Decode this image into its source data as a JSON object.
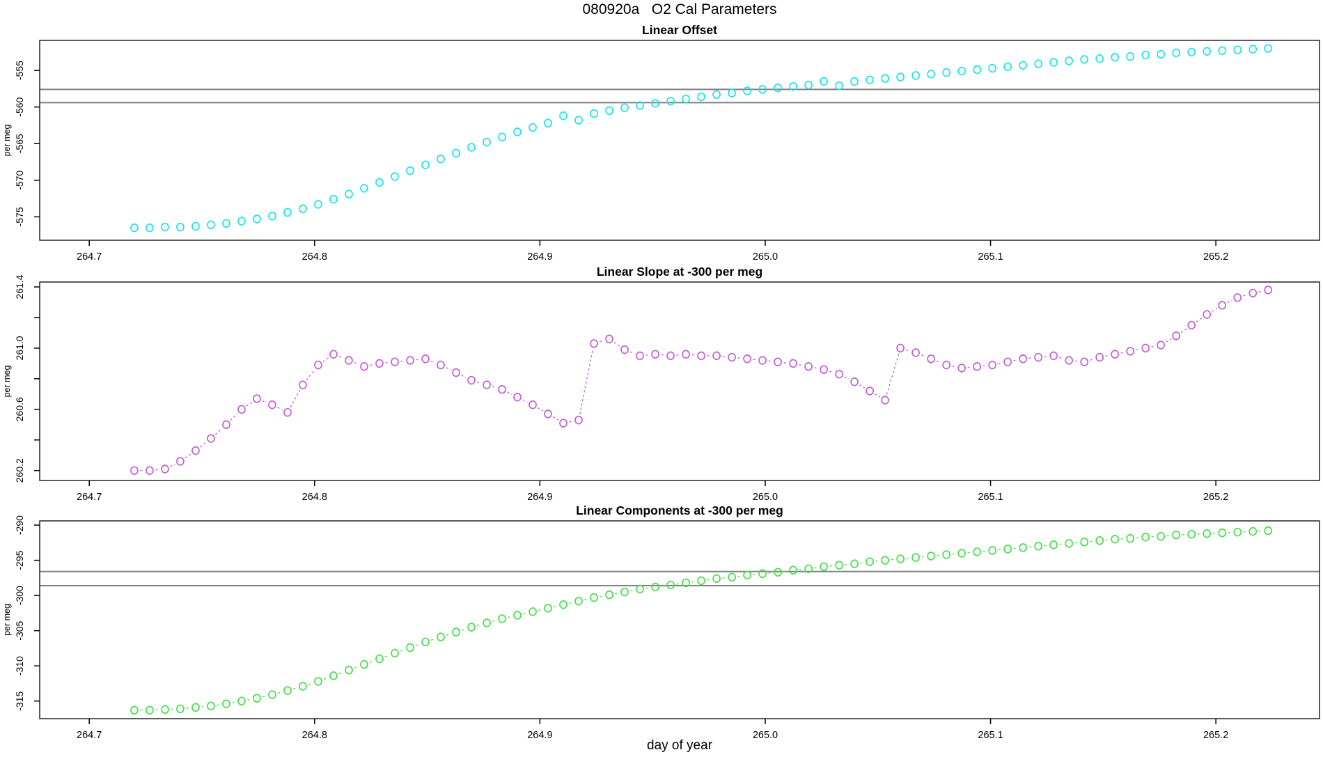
{
  "window": {
    "title": "080920a   O2 Cal Parameters"
  },
  "axes": {
    "xlabel": "day of year",
    "ylabel": "per meg"
  },
  "colors": {
    "offset_series": "#14e8e8",
    "slope_series": "#c45fd6",
    "components_series": "#42e245",
    "reference_line": "#808080",
    "axis": "#000000"
  },
  "chart_data": [
    {
      "type": "scatter",
      "title": "Linear Offset",
      "ylabel": "per meg",
      "series_color": "#14e8e8",
      "connect": false,
      "xlim": [
        264.678,
        265.246
      ],
      "ylim": [
        -578.2,
        -550.9
      ],
      "yticks": [
        -575,
        -570,
        -565,
        -560,
        -555
      ],
      "ytick_labels": [
        "-575",
        "-570",
        "-565",
        "-560",
        "-555"
      ],
      "ref_lines": [
        -557.6,
        -559.4
      ],
      "x": [
        264.72,
        264.7268,
        264.7336,
        264.7404,
        264.7472,
        264.754,
        264.7608,
        264.7676,
        264.7744,
        264.7812,
        264.788,
        264.7948,
        264.8016,
        264.8084,
        264.8152,
        264.822,
        264.8288,
        264.8356,
        264.8424,
        264.8492,
        264.856,
        264.8628,
        264.8696,
        264.8764,
        264.8832,
        264.89,
        264.8968,
        264.9036,
        264.9104,
        264.9172,
        264.924,
        264.9308,
        264.9376,
        264.9444,
        264.9512,
        264.958,
        264.9648,
        264.9716,
        264.9784,
        264.9852,
        264.992,
        264.9988,
        265.0056,
        265.0124,
        265.0192,
        265.026,
        265.0328,
        265.0396,
        265.0464,
        265.0532,
        265.06,
        265.0668,
        265.0736,
        265.0804,
        265.0872,
        265.094,
        265.1008,
        265.1076,
        265.1144,
        265.1212,
        265.128,
        265.1348,
        265.1416,
        265.1484,
        265.1552,
        265.162,
        265.1688,
        265.1756,
        265.1824,
        265.1892,
        265.196,
        265.2028,
        265.2096,
        265.2164,
        265.2232
      ],
      "values": [
        -576.5,
        -576.5,
        -576.4,
        -576.4,
        -576.3,
        -576.1,
        -575.9,
        -575.6,
        -575.3,
        -574.9,
        -574.4,
        -573.9,
        -573.3,
        -572.6,
        -571.9,
        -571.1,
        -570.3,
        -569.5,
        -568.7,
        -567.9,
        -567.1,
        -566.3,
        -565.5,
        -564.8,
        -564.1,
        -563.4,
        -562.8,
        -562.2,
        -561.2,
        -561.8,
        -560.9,
        -560.5,
        -560.1,
        -559.8,
        -559.5,
        -559.2,
        -558.9,
        -558.6,
        -558.3,
        -558.1,
        -557.8,
        -557.6,
        -557.4,
        -557.2,
        -557.0,
        -556.5,
        -557.1,
        -556.5,
        -556.3,
        -556.1,
        -555.9,
        -555.7,
        -555.5,
        -555.3,
        -555.1,
        -554.9,
        -554.7,
        -554.5,
        -554.3,
        -554.1,
        -553.9,
        -553.7,
        -553.5,
        -553.4,
        -553.2,
        -553.1,
        -552.9,
        -552.8,
        -552.6,
        -552.5,
        -552.4,
        -552.3,
        -552.2,
        -552.1,
        -552.0
      ]
    },
    {
      "type": "scatter",
      "title": "Linear Slope at -300 per meg",
      "ylabel": "per meg",
      "series_color": "#c45fd6",
      "connect": true,
      "xlim": [
        264.678,
        265.246
      ],
      "ylim": [
        260.135,
        261.432
      ],
      "yticks": [
        260.2,
        260.4,
        260.6,
        260.8,
        261.0,
        261.2,
        261.4
      ],
      "ytick_labels": [
        "260.2",
        "",
        "260.6",
        "",
        "261.0",
        "",
        "261.4"
      ],
      "ref_lines": [],
      "x": [
        264.72,
        264.7268,
        264.7336,
        264.7404,
        264.7472,
        264.754,
        264.7608,
        264.7676,
        264.7744,
        264.7812,
        264.788,
        264.7948,
        264.8016,
        264.8084,
        264.8152,
        264.822,
        264.8288,
        264.8356,
        264.8424,
        264.8492,
        264.856,
        264.8628,
        264.8696,
        264.8764,
        264.8832,
        264.89,
        264.8968,
        264.9036,
        264.9104,
        264.9172,
        264.924,
        264.9308,
        264.9376,
        264.9444,
        264.9512,
        264.958,
        264.9648,
        264.9716,
        264.9784,
        264.9852,
        264.992,
        264.9988,
        265.0056,
        265.0124,
        265.0192,
        265.026,
        265.0328,
        265.0396,
        265.0464,
        265.0532,
        265.06,
        265.0668,
        265.0736,
        265.0804,
        265.0872,
        265.094,
        265.1008,
        265.1076,
        265.1144,
        265.1212,
        265.128,
        265.1348,
        265.1416,
        265.1484,
        265.1552,
        265.162,
        265.1688,
        265.1756,
        265.1824,
        265.1892,
        265.196,
        265.2028,
        265.2096,
        265.2164,
        265.2232
      ],
      "values": [
        260.2,
        260.2,
        260.21,
        260.26,
        260.33,
        260.41,
        260.5,
        260.6,
        260.67,
        260.63,
        260.58,
        260.76,
        260.89,
        260.96,
        260.92,
        260.88,
        260.9,
        260.91,
        260.92,
        260.93,
        260.89,
        260.84,
        260.79,
        260.76,
        260.73,
        260.68,
        260.63,
        260.57,
        260.51,
        260.53,
        261.03,
        261.06,
        260.99,
        260.95,
        260.96,
        260.95,
        260.96,
        260.95,
        260.95,
        260.94,
        260.93,
        260.92,
        260.91,
        260.9,
        260.88,
        260.86,
        260.83,
        260.78,
        260.72,
        260.66,
        261.0,
        260.97,
        260.93,
        260.89,
        260.87,
        260.88,
        260.89,
        260.91,
        260.93,
        260.94,
        260.95,
        260.92,
        260.91,
        260.94,
        260.96,
        260.98,
        261.0,
        261.02,
        261.08,
        261.15,
        261.22,
        261.28,
        261.33,
        261.36,
        261.38
      ]
    },
    {
      "type": "scatter",
      "title": "Linear Components at -300 per meg",
      "ylabel": "per meg",
      "series_color": "#42e245",
      "connect": true,
      "xlim": [
        264.678,
        265.246
      ],
      "ylim": [
        -317.5,
        -289.4
      ],
      "yticks": [
        -315,
        -310,
        -305,
        -300,
        -295,
        -290
      ],
      "ytick_labels": [
        "-315",
        "-310",
        "-305",
        "-300",
        "-295",
        "-290"
      ],
      "ref_lines": [
        -296.6,
        -298.6
      ],
      "x": [
        264.72,
        264.7268,
        264.7336,
        264.7404,
        264.7472,
        264.754,
        264.7608,
        264.7676,
        264.7744,
        264.7812,
        264.788,
        264.7948,
        264.8016,
        264.8084,
        264.8152,
        264.822,
        264.8288,
        264.8356,
        264.8424,
        264.8492,
        264.856,
        264.8628,
        264.8696,
        264.8764,
        264.8832,
        264.89,
        264.8968,
        264.9036,
        264.9104,
        264.9172,
        264.924,
        264.9308,
        264.9376,
        264.9444,
        264.9512,
        264.958,
        264.9648,
        264.9716,
        264.9784,
        264.9852,
        264.992,
        264.9988,
        265.0056,
        265.0124,
        265.0192,
        265.026,
        265.0328,
        265.0396,
        265.0464,
        265.0532,
        265.06,
        265.0668,
        265.0736,
        265.0804,
        265.0872,
        265.094,
        265.1008,
        265.1076,
        265.1144,
        265.1212,
        265.128,
        265.1348,
        265.1416,
        265.1484,
        265.1552,
        265.162,
        265.1688,
        265.1756,
        265.1824,
        265.1892,
        265.196,
        265.2028,
        265.2096,
        265.2164,
        265.2232
      ],
      "values": [
        -316.3,
        -316.3,
        -316.2,
        -316.1,
        -315.9,
        -315.7,
        -315.4,
        -315.0,
        -314.6,
        -314.1,
        -313.5,
        -312.9,
        -312.2,
        -311.4,
        -310.6,
        -309.8,
        -309.0,
        -308.2,
        -307.4,
        -306.6,
        -305.9,
        -305.2,
        -304.5,
        -303.9,
        -303.3,
        -302.8,
        -302.3,
        -301.8,
        -301.3,
        -300.8,
        -300.3,
        -299.9,
        -299.5,
        -299.1,
        -298.8,
        -298.5,
        -298.2,
        -297.9,
        -297.6,
        -297.4,
        -297.1,
        -296.9,
        -296.7,
        -296.4,
        -296.2,
        -295.9,
        -295.7,
        -295.5,
        -295.2,
        -295.0,
        -294.8,
        -294.6,
        -294.4,
        -294.2,
        -294.0,
        -293.8,
        -293.6,
        -293.4,
        -293.2,
        -293.0,
        -292.8,
        -292.6,
        -292.4,
        -292.2,
        -292.0,
        -291.9,
        -291.7,
        -291.6,
        -291.4,
        -291.3,
        -291.2,
        -291.1,
        -291.0,
        -290.9,
        -290.8
      ]
    }
  ],
  "xticks": [
    264.7,
    264.8,
    264.9,
    265.0,
    265.1,
    265.2
  ],
  "xtick_labels": [
    "264.7",
    "264.8",
    "264.9",
    "265.0",
    "265.1",
    "265.2"
  ]
}
